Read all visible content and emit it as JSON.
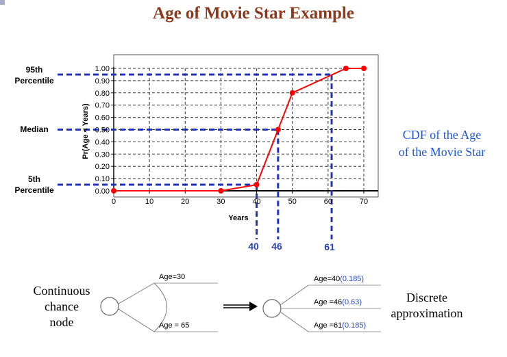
{
  "title": "Age of Movie Star Example",
  "chart_data": {
    "type": "line",
    "ylabel": "Pr(Age < Years)",
    "xlabel": "Years",
    "xlim": [
      0,
      70
    ],
    "ylim": [
      0,
      1
    ],
    "x_ticks": [
      "0",
      "10",
      "20",
      "30",
      "40",
      "50",
      "60",
      "70"
    ],
    "y_ticks": [
      "0.00",
      "0.10",
      "0.20",
      "0.30",
      "0.40",
      "0.50",
      "0.60",
      "0.70",
      "0.80",
      "0.90",
      "1.00"
    ],
    "series": [
      {
        "x": [
          0,
          30,
          40,
          46,
          50,
          65,
          70
        ],
        "y": [
          0,
          0,
          0.05,
          0.5,
          0.8,
          1.0,
          1.0
        ],
        "color": "#ff0000"
      }
    ],
    "grid": true,
    "reference_lines": [
      {
        "label": "95th Percentile",
        "y": 0.95,
        "x": 61
      },
      {
        "label": "Median",
        "y": 0.5,
        "x": 46
      },
      {
        "label": "5th Percentile",
        "y": 0.05,
        "x": 40
      }
    ],
    "x_markers": [
      "40",
      "46",
      "61"
    ],
    "reference_color": "#2233bb"
  },
  "labels": {
    "p95_line1": "95th",
    "p95_line2": "Percentile",
    "median": "Median",
    "p5_line1": "5th",
    "p5_line2": "Percentile"
  },
  "caption": {
    "line1": "CDF of the Age",
    "line2": "of the Movie Star"
  },
  "tree": {
    "continuous": {
      "line1": "Continuous",
      "line2": "chance",
      "line3": "node"
    },
    "upper_branch": "Age=30",
    "lower_branch": "Age = 65",
    "discrete": {
      "line1": "Discrete",
      "line2": "approximation"
    },
    "branches": [
      {
        "label": "Age=40",
        "prob": "(0.185)"
      },
      {
        "label": "Age =46",
        "prob": "(0.63)"
      },
      {
        "label": "Age =61",
        "prob": "(0.185)"
      }
    ]
  }
}
